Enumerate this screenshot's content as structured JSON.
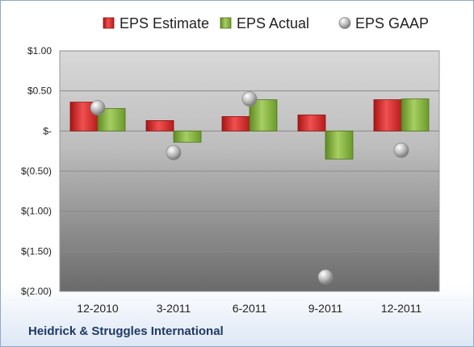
{
  "company": "Heidrick & Struggles International",
  "colors": {
    "estimate": "#d42a2a",
    "actual": "#86b141",
    "gaap": "#b4b4b4",
    "frame": "#8ea7c9",
    "text": "#222222"
  },
  "chart_data": {
    "type": "bar",
    "categories": [
      "12-2010",
      "3-2011",
      "6-2011",
      "9-2011",
      "12-2011"
    ],
    "series": [
      {
        "name": "EPS Estimate",
        "type": "bar",
        "values": [
          0.36,
          0.13,
          0.18,
          0.2,
          0.39
        ]
      },
      {
        "name": "EPS Actual",
        "type": "bar",
        "values": [
          0.28,
          -0.14,
          0.39,
          -0.35,
          0.4
        ]
      },
      {
        "name": "EPS GAAP",
        "type": "scatter",
        "values": [
          0.29,
          -0.27,
          0.4,
          -1.82,
          -0.24
        ]
      }
    ],
    "y_ticks": [
      1.0,
      0.5,
      0.0,
      -0.5,
      -1.0,
      -1.5,
      -2.0
    ],
    "y_tick_labels": [
      "$1.00",
      "$0.50",
      "$-",
      "$(0.50)",
      "$(1.00)",
      "$(1.50)",
      "$(2.00)"
    ],
    "ylim": [
      -2.0,
      1.0
    ],
    "grid": true,
    "legend_position": "top",
    "title": "",
    "xlabel": "",
    "ylabel": ""
  }
}
